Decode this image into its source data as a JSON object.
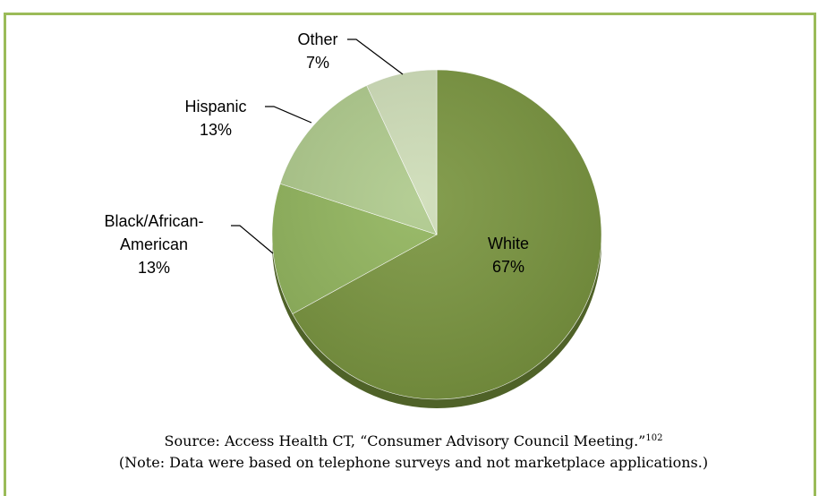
{
  "chart_data": {
    "type": "pie",
    "categories": [
      "White",
      "Black/African-American",
      "Hispanic",
      "Other"
    ],
    "values": [
      67,
      13,
      13,
      7
    ],
    "value_labels": [
      "67%",
      "13%",
      "13%",
      "7%"
    ],
    "label_lines": {
      "White": [
        "White"
      ],
      "Black/African-American": [
        "Black/African-",
        "American"
      ],
      "Hispanic": [
        "Hispanic"
      ],
      "Other": [
        "Other"
      ]
    },
    "colors": [
      "#77933c",
      "#8fb35a",
      "#adc98a",
      "#cddcb6"
    ],
    "title": "",
    "legend": "none"
  },
  "caption": {
    "source": "Source: Access Health CT, “Consumer Advisory Council Meeting.”",
    "source_ref": "102",
    "note": "(Note: Data were based on telephone surveys and not marketplace applications.)"
  },
  "colors": {
    "border": "#9bbb59"
  }
}
